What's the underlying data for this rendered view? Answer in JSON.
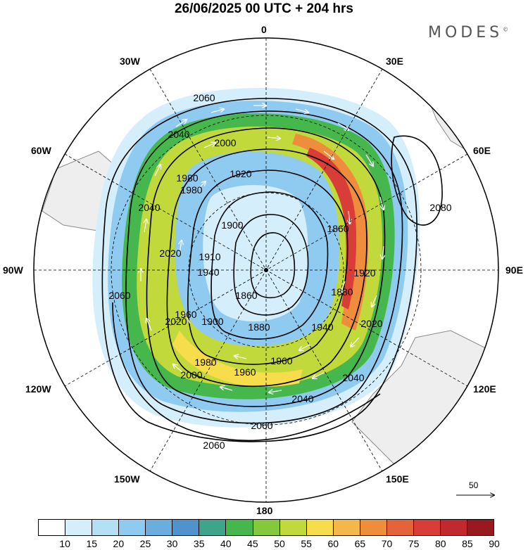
{
  "title": "26/06/2025  00 UTC  + 204 hrs",
  "brand": {
    "name": "MODES",
    "mark": "©"
  },
  "longitude_labels": {
    "lon_0": "0",
    "lon_30e": "30E",
    "lon_60e": "60E",
    "lon_90e": "90E",
    "lon_120e": "120E",
    "lon_150e": "150E",
    "lon_180": "180",
    "lon_150w": "150W",
    "lon_120w": "120W",
    "lon_90w": "90W",
    "lon_60w": "60W",
    "lon_30w": "30W"
  },
  "contour_labels": [
    "2060",
    "2040",
    "2000",
    "1980",
    "1920",
    "1900",
    "1880",
    "1860",
    "1910",
    "1940",
    "1960",
    "2020",
    "2080",
    "2060",
    "2040",
    "2020",
    "1960",
    "1900",
    "1860",
    "1880",
    "1920",
    "1960",
    "1980",
    "2000",
    "2040",
    "2060",
    "2060",
    "2040",
    "2020",
    "1980",
    "1940"
  ],
  "vector_reference": {
    "value": "50"
  },
  "colorbar": {
    "labels": [
      "10",
      "15",
      "20",
      "25",
      "30",
      "35",
      "40",
      "45",
      "50",
      "55",
      "60",
      "65",
      "70",
      "75",
      "80",
      "85",
      "90"
    ],
    "colors": [
      "#ffffff",
      "#d4eefb",
      "#b4e0f6",
      "#8fcaf0",
      "#6aaede",
      "#4f93cd",
      "#3ea58a",
      "#46b74c",
      "#84c83c",
      "#c2d93b",
      "#f7dc4b",
      "#f4b84a",
      "#ee8e3c",
      "#e5633a",
      "#d93d37",
      "#c2292e",
      "#98191f"
    ]
  },
  "map_colors": {
    "land": "#eeeeee",
    "coast": "#8a8a8a"
  }
}
